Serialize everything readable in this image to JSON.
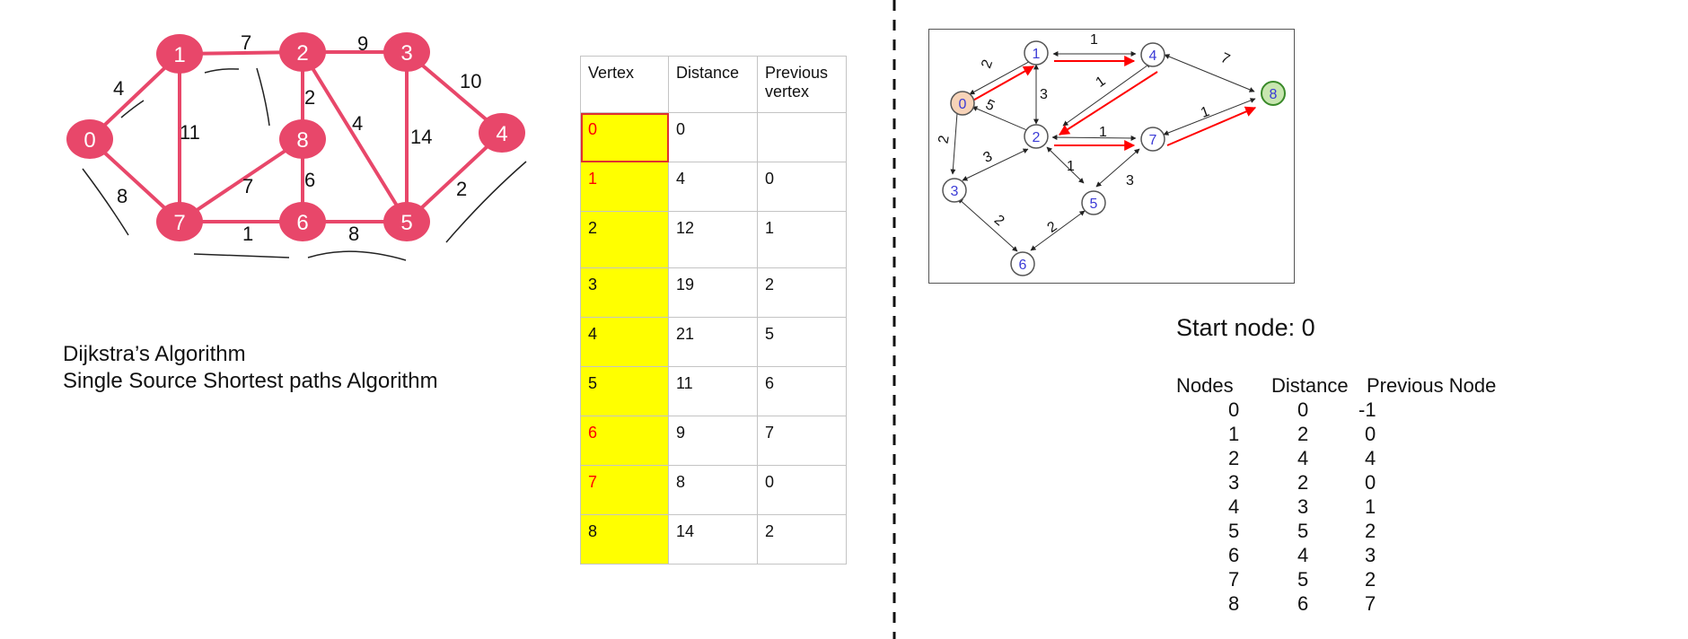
{
  "left_graph": {
    "nodes": [
      "0",
      "1",
      "2",
      "3",
      "4",
      "5",
      "6",
      "7",
      "8"
    ],
    "edge_weights": [
      "4",
      "8",
      "7",
      "9",
      "10",
      "2",
      "1",
      "8",
      "11",
      "7",
      "2",
      "6",
      "4",
      "14"
    ],
    "colors": {
      "node": "#e8476a",
      "edge": "#e8476a",
      "label": "#ffffff"
    }
  },
  "caption": {
    "line1": "Dijkstra’s Algorithm",
    "line2": "Single Source Shortest paths Algorithm"
  },
  "distance_table": {
    "headers": [
      "Vertex",
      "Distance",
      "Previous\nvertex"
    ],
    "rows": [
      {
        "vertex": "0",
        "distance": "0",
        "previous": "",
        "highlight_red": true
      },
      {
        "vertex": "1",
        "distance": "4",
        "previous": "0",
        "highlight_red": true
      },
      {
        "vertex": "2",
        "distance": "12",
        "previous": "1",
        "highlight_red": false
      },
      {
        "vertex": "3",
        "distance": "19",
        "previous": "2",
        "highlight_red": false
      },
      {
        "vertex": "4",
        "distance": "21",
        "previous": "5",
        "highlight_red": false
      },
      {
        "vertex": "5",
        "distance": "11",
        "previous": "6",
        "highlight_red": false
      },
      {
        "vertex": "6",
        "distance": "9",
        "previous": "7",
        "highlight_red": true
      },
      {
        "vertex": "7",
        "distance": "8",
        "previous": "0",
        "highlight_red": true
      },
      {
        "vertex": "8",
        "distance": "14",
        "previous": "2",
        "highlight_red": false
      }
    ],
    "colors": {
      "vertex_fill": "#ffff00",
      "highlight_text": "#ff0000"
    }
  },
  "right_graph": {
    "nodes": [
      "0",
      "1",
      "2",
      "3",
      "4",
      "5",
      "6",
      "7",
      "8"
    ],
    "edge_weights": [
      "2",
      "1",
      "7",
      "1",
      "5",
      "3",
      "2",
      "1",
      "1",
      "3",
      "1",
      "3",
      "2",
      "2"
    ],
    "colors": {
      "start_fill": "#f7d3b8",
      "target_fill": "#c8e6b0",
      "label": "#3b3bd6",
      "path": "#ff0000",
      "edge": "#333333"
    }
  },
  "start_node": "Start node: 0",
  "result_table": {
    "headers": [
      "Nodes",
      "Distance",
      "Previous Node"
    ],
    "rows": [
      [
        "0",
        "0",
        "-1"
      ],
      [
        "1",
        "2",
        "0"
      ],
      [
        "2",
        "4",
        "4"
      ],
      [
        "3",
        "2",
        "0"
      ],
      [
        "4",
        "3",
        "1"
      ],
      [
        "5",
        "5",
        "2"
      ],
      [
        "6",
        "4",
        "3"
      ],
      [
        "7",
        "5",
        "2"
      ],
      [
        "8",
        "6",
        "7"
      ]
    ]
  }
}
